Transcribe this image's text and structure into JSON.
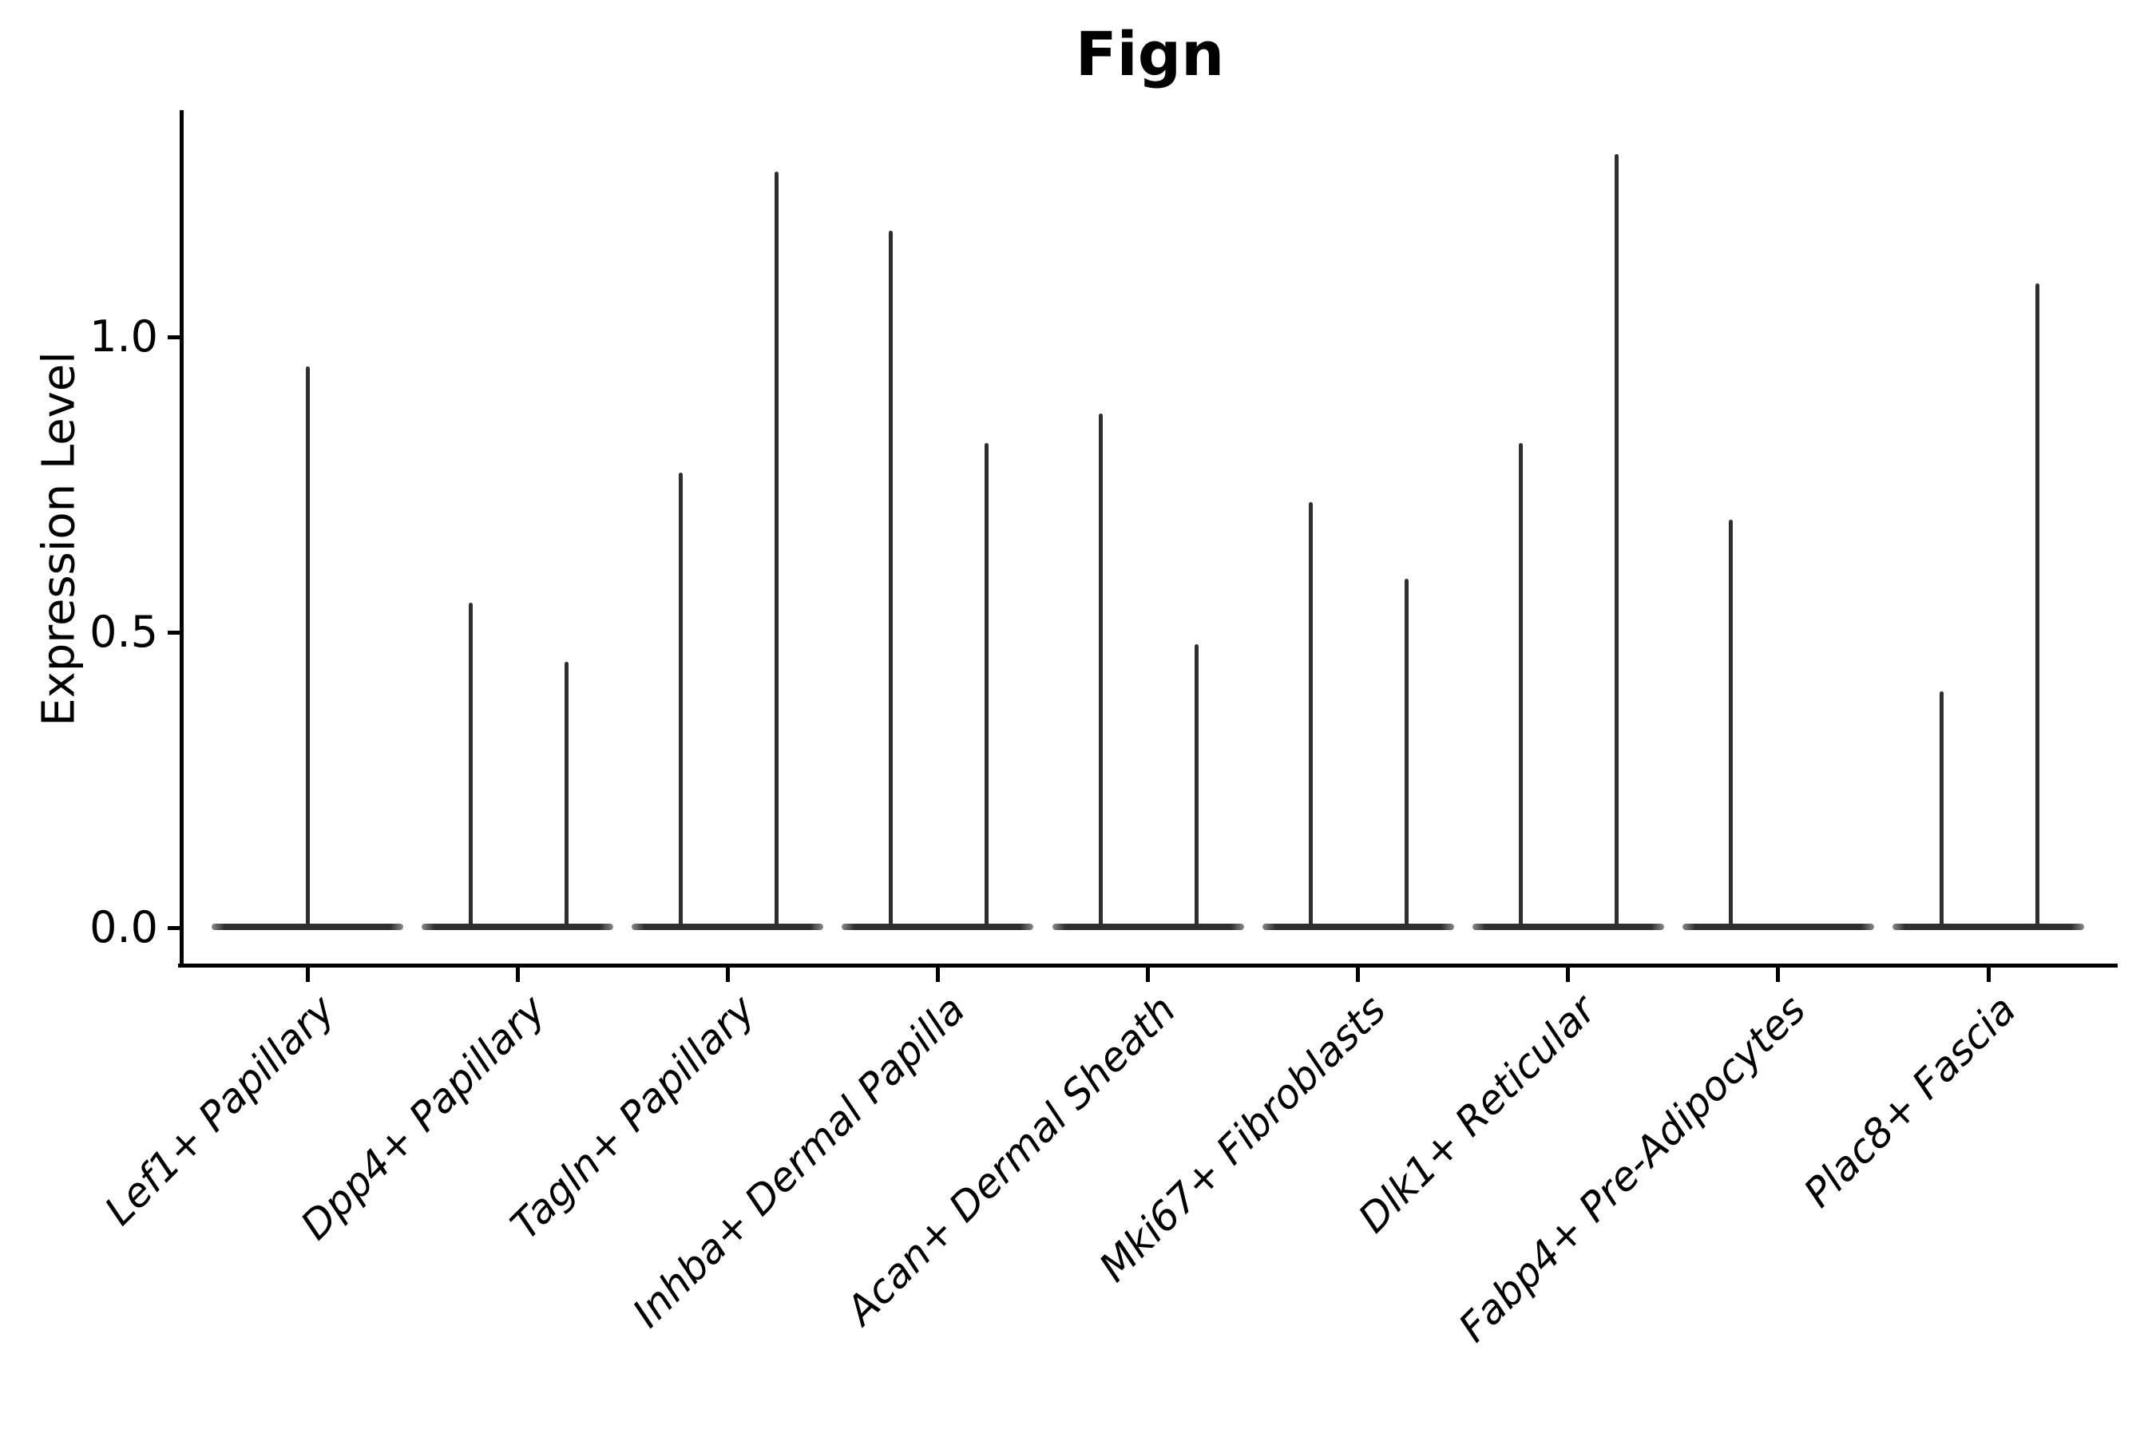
{
  "title": "Fign",
  "y_axis": {
    "label": "Expression Level",
    "tick_labels": [
      "0.0",
      "0.5",
      "1.0"
    ]
  },
  "colors": {
    "violin": "#2f2f2f",
    "axis": "#000000",
    "background": "#ffffff"
  },
  "chart_data": {
    "type": "violin",
    "title": "Fign",
    "xlabel": "",
    "ylabel": "Expression Level",
    "yticks": [
      0.0,
      0.5,
      1.0
    ],
    "ylim": [
      -0.065,
      1.4
    ],
    "grid": false,
    "legend_position": "none",
    "x_tick_rotation_deg": 45,
    "categories": [
      "Lef1+ Papillary",
      "Dpp4+ Papillary",
      "Tagln+ Papillary",
      "Inhba+ Dermal Papilla",
      "Acan+ Dermal Sheath",
      "Mki67+ Fibroblasts",
      "Dlk1+ Reticular",
      "Fabp4+ Pre-Adipocytes",
      "Plac8+ Fascia"
    ],
    "baseline_value": 0.0,
    "groups": [
      {
        "category": "Lef1+ Papillary",
        "violins": [
          {
            "position": "center",
            "max": 0.95
          }
        ]
      },
      {
        "category": "Dpp4+ Papillary",
        "violins": [
          {
            "position": "left",
            "max": 0.55
          },
          {
            "position": "right",
            "max": 0.45
          }
        ]
      },
      {
        "category": "Tagln+ Papillary",
        "violins": [
          {
            "position": "left",
            "max": 0.77
          },
          {
            "position": "right",
            "max": 1.28
          }
        ]
      },
      {
        "category": "Inhba+ Dermal Papilla",
        "violins": [
          {
            "position": "left",
            "max": 1.18
          },
          {
            "position": "right",
            "max": 0.82
          }
        ]
      },
      {
        "category": "Acan+ Dermal Sheath",
        "violins": [
          {
            "position": "left",
            "max": 0.87
          },
          {
            "position": "right",
            "max": 0.48
          }
        ]
      },
      {
        "category": "Mki67+ Fibroblasts",
        "violins": [
          {
            "position": "left",
            "max": 0.72
          },
          {
            "position": "right",
            "max": 0.59
          }
        ]
      },
      {
        "category": "Dlk1+ Reticular",
        "violins": [
          {
            "position": "left",
            "max": 0.82
          },
          {
            "position": "right",
            "max": 1.31
          }
        ]
      },
      {
        "category": "Fabp4+ Pre-Adipocytes",
        "violins": [
          {
            "position": "left",
            "max": 0.69
          }
        ]
      },
      {
        "category": "Plac8+ Fascia",
        "violins": [
          {
            "position": "left",
            "max": 0.4
          },
          {
            "position": "right",
            "max": 1.09
          }
        ]
      }
    ]
  }
}
